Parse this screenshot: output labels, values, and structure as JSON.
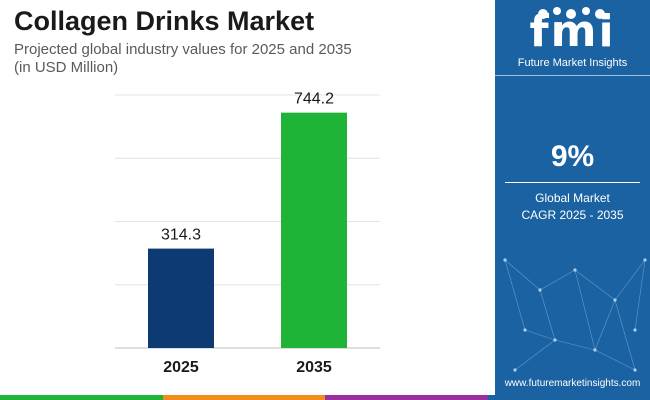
{
  "header": {
    "title": "Collagen Drinks Market",
    "subtitle_line1": "Projected global industry values for 2025 and 2035",
    "subtitle_line2": "(in USD Million)"
  },
  "chart_data": {
    "type": "bar",
    "categories": [
      "2025",
      "2035"
    ],
    "values": [
      314.3,
      744.2
    ],
    "data_labels": [
      "314.3",
      "744.2"
    ],
    "bar_colors": [
      "#0d3a73",
      "#1fb338"
    ],
    "ylim": [
      0,
      800
    ],
    "grid": true,
    "title": "Collagen Drinks Market"
  },
  "sidebar": {
    "logo_text": "fmi",
    "logo_caption": "Future Market Insights",
    "cagr_value": "9%",
    "cagr_label_line1": "Global Market",
    "cagr_label_line2": "CAGR 2025 - 2035",
    "website": "www.futuremarketinsights.com"
  },
  "colors": {
    "sidebar_bg": "#1b62a2",
    "bottom_strip": [
      "#1fb338",
      "#f28c1d",
      "#9b2fa0",
      "#1b62a2"
    ]
  }
}
